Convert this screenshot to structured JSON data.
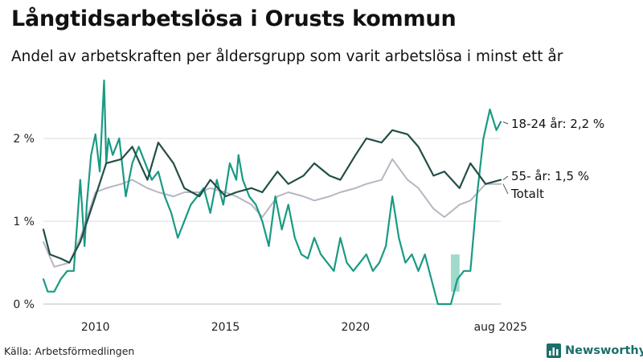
{
  "header": {
    "title": "Långtidsarbetslösa i Orusts kommun",
    "subtitle": "Andel av arbetskraften per åldersgrupp som varit arbetslösa i minst ett år"
  },
  "footer": {
    "source": "Källa: Arbetsförmedlingen",
    "brand": "Newsworthy"
  },
  "colors": {
    "youth": "#1a9a84",
    "older": "#234e47",
    "total": "#b9b5c3",
    "band": "#8fd3c3",
    "grid": "#dddddd"
  },
  "chart_data": {
    "type": "line",
    "title": "Långtidsarbetslösa i Orusts kommun",
    "subtitle": "Andel av arbetskraften per åldersgrupp som varit arbetslösa i minst ett år",
    "xlabel": "",
    "ylabel": "",
    "x_ticks": [
      "2010",
      "2015",
      "2020",
      "aug 2025"
    ],
    "y_ticks": [
      "0 %",
      "1 %",
      "2 %"
    ],
    "ylim": [
      0,
      2.7
    ],
    "xlim": [
      "2008-01",
      "2025-08"
    ],
    "grid": true,
    "series": [
      {
        "key": "youth",
        "end_label": "18-24 år: 2,2 %",
        "x": [
          "2008-01",
          "2008-03",
          "2008-06",
          "2008-09",
          "2008-12",
          "2009-03",
          "2009-06",
          "2009-08",
          "2009-09",
          "2009-11",
          "2010-01",
          "2010-03",
          "2010-05",
          "2010-06",
          "2010-07",
          "2010-09",
          "2010-12",
          "2011-03",
          "2011-06",
          "2011-09",
          "2011-12",
          "2012-03",
          "2012-06",
          "2012-09",
          "2012-12",
          "2013-03",
          "2013-06",
          "2013-09",
          "2013-12",
          "2014-03",
          "2014-06",
          "2014-09",
          "2014-12",
          "2015-03",
          "2015-06",
          "2015-07",
          "2015-09",
          "2015-12",
          "2016-03",
          "2016-06",
          "2016-09",
          "2016-12",
          "2017-03",
          "2017-06",
          "2017-09",
          "2017-12",
          "2018-03",
          "2018-06",
          "2018-09",
          "2018-12",
          "2019-03",
          "2019-06",
          "2019-09",
          "2019-12",
          "2020-03",
          "2020-06",
          "2020-09",
          "2020-12",
          "2021-03",
          "2021-06",
          "2021-09",
          "2021-12",
          "2022-03",
          "2022-06",
          "2022-09",
          "2022-12",
          "2023-03",
          "2023-06",
          "2023-09",
          "2023-12",
          "2024-03",
          "2024-06",
          "2024-09",
          "2024-12",
          "2025-03",
          "2025-06",
          "2025-08"
        ],
        "y": [
          0.3,
          0.15,
          0.15,
          0.3,
          0.4,
          0.4,
          1.5,
          0.7,
          1.2,
          1.8,
          2.05,
          1.6,
          2.7,
          1.7,
          2.0,
          1.8,
          2.0,
          1.3,
          1.7,
          1.9,
          1.7,
          1.5,
          1.6,
          1.3,
          1.1,
          0.8,
          1.0,
          1.2,
          1.3,
          1.4,
          1.1,
          1.5,
          1.2,
          1.7,
          1.5,
          1.8,
          1.5,
          1.3,
          1.2,
          1.0,
          0.7,
          1.3,
          0.9,
          1.2,
          0.8,
          0.6,
          0.55,
          0.8,
          0.6,
          0.5,
          0.4,
          0.8,
          0.5,
          0.4,
          0.5,
          0.6,
          0.4,
          0.5,
          0.7,
          1.3,
          0.8,
          0.5,
          0.6,
          0.4,
          0.6,
          0.3,
          0.0,
          0.0,
          0.0,
          0.3,
          0.4,
          0.4,
          1.3,
          2.0,
          2.35,
          2.1,
          2.2
        ]
      },
      {
        "key": "older",
        "end_label": "55- år: 1,5 %",
        "x": [
          "2008-01",
          "2008-04",
          "2008-09",
          "2009-01",
          "2009-06",
          "2010-01",
          "2010-06",
          "2011-01",
          "2011-06",
          "2012-01",
          "2012-06",
          "2013-01",
          "2013-06",
          "2014-01",
          "2014-06",
          "2015-01",
          "2015-06",
          "2016-01",
          "2016-06",
          "2017-01",
          "2017-06",
          "2018-01",
          "2018-06",
          "2019-01",
          "2019-06",
          "2020-01",
          "2020-06",
          "2021-01",
          "2021-06",
          "2022-01",
          "2022-06",
          "2023-01",
          "2023-06",
          "2024-01",
          "2024-06",
          "2025-01",
          "2025-08"
        ],
        "y": [
          0.9,
          0.6,
          0.55,
          0.5,
          0.75,
          1.3,
          1.7,
          1.75,
          1.9,
          1.5,
          1.95,
          1.7,
          1.4,
          1.3,
          1.5,
          1.3,
          1.35,
          1.4,
          1.35,
          1.6,
          1.45,
          1.55,
          1.7,
          1.55,
          1.5,
          1.8,
          2.0,
          1.95,
          2.1,
          2.05,
          1.9,
          1.55,
          1.6,
          1.4,
          1.7,
          1.45,
          1.5
        ]
      },
      {
        "key": "total",
        "end_label": "Totalt",
        "x": [
          "2008-01",
          "2008-06",
          "2009-01",
          "2009-06",
          "2010-01",
          "2010-06",
          "2011-01",
          "2011-06",
          "2012-01",
          "2012-06",
          "2013-01",
          "2013-06",
          "2014-01",
          "2014-06",
          "2015-01",
          "2015-06",
          "2016-01",
          "2016-06",
          "2017-01",
          "2017-06",
          "2018-01",
          "2018-06",
          "2019-01",
          "2019-06",
          "2020-01",
          "2020-06",
          "2021-01",
          "2021-06",
          "2022-01",
          "2022-06",
          "2023-01",
          "2023-06",
          "2024-01",
          "2024-06",
          "2025-01",
          "2025-08"
        ],
        "y": [
          0.75,
          0.45,
          0.5,
          0.8,
          1.35,
          1.4,
          1.45,
          1.5,
          1.4,
          1.35,
          1.3,
          1.35,
          1.35,
          1.4,
          1.35,
          1.3,
          1.2,
          1.05,
          1.3,
          1.35,
          1.3,
          1.25,
          1.3,
          1.35,
          1.4,
          1.45,
          1.5,
          1.75,
          1.5,
          1.4,
          1.15,
          1.05,
          1.2,
          1.25,
          1.45,
          1.45
        ]
      }
    ],
    "uncertainty_band": {
      "series": "youth",
      "x": [
        "2023-09",
        "2024-01"
      ],
      "low": [
        0.15,
        0.15
      ],
      "high": [
        0.6,
        0.6
      ]
    }
  }
}
